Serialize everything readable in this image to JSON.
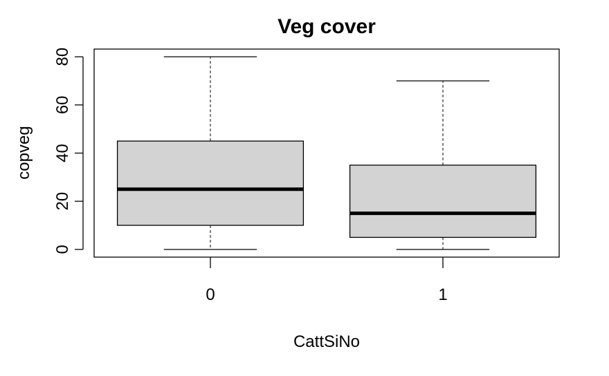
{
  "chart_data": {
    "type": "boxplot",
    "title": "Veg cover",
    "xlabel": "CattSiNo",
    "ylabel": "copveg",
    "categories": [
      "0",
      "1"
    ],
    "y_ticks": [
      0,
      20,
      40,
      60,
      80
    ],
    "ylim": [
      -3.2,
      83.2
    ],
    "grid": false,
    "legend": "none",
    "box_fill": "#d3d3d3",
    "boxes": [
      {
        "category": "0",
        "min": 0,
        "q1": 10,
        "median": 25,
        "q3": 45,
        "max": 80
      },
      {
        "category": "1",
        "min": 0,
        "q1": 5,
        "median": 15,
        "q3": 35,
        "max": 70
      }
    ]
  }
}
